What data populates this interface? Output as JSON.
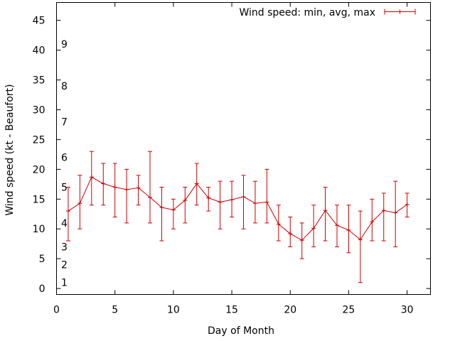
{
  "chart_data": {
    "type": "line",
    "series_name": "Wind speed: min, avg, max",
    "xlabel": "Day of Month",
    "ylabel": "Wind speed (kt - Beaufort)",
    "xlim": [
      0,
      32
    ],
    "ylim": [
      -1,
      48
    ],
    "x_ticks": [
      "0",
      "5",
      "10",
      "15",
      "20",
      "25",
      "30"
    ],
    "y_ticks": [
      "0",
      "5",
      "10",
      "15",
      "20",
      "25",
      "30",
      "35",
      "40",
      "45"
    ],
    "beaufort_labels": [
      {
        "label": "1",
        "y": 1
      },
      {
        "label": "2",
        "y": 4
      },
      {
        "label": "3",
        "y": 7
      },
      {
        "label": "4",
        "y": 11
      },
      {
        "label": "5",
        "y": 17
      },
      {
        "label": "6",
        "y": 22
      },
      {
        "label": "7",
        "y": 28
      },
      {
        "label": "8",
        "y": 34
      },
      {
        "label": "9",
        "y": 41
      }
    ],
    "color": "#cc0000",
    "points": [
      {
        "x": 1,
        "avg": 13.0,
        "min": 8,
        "max": 17
      },
      {
        "x": 2,
        "avg": 14.3,
        "min": 10,
        "max": 19
      },
      {
        "x": 3,
        "avg": 18.7,
        "min": 14,
        "max": 23
      },
      {
        "x": 4,
        "avg": 17.6,
        "min": 14,
        "max": 21
      },
      {
        "x": 5,
        "avg": 17.0,
        "min": 12,
        "max": 21
      },
      {
        "x": 6,
        "avg": 16.6,
        "min": 11,
        "max": 20
      },
      {
        "x": 7,
        "avg": 16.9,
        "min": 14,
        "max": 19
      },
      {
        "x": 8,
        "avg": 15.3,
        "min": 11,
        "max": 23
      },
      {
        "x": 9,
        "avg": 13.6,
        "min": 8,
        "max": 17
      },
      {
        "x": 10,
        "avg": 13.2,
        "min": 10,
        "max": 15
      },
      {
        "x": 11,
        "avg": 14.8,
        "min": 11,
        "max": 17
      },
      {
        "x": 12,
        "avg": 17.6,
        "min": 14,
        "max": 21
      },
      {
        "x": 13,
        "avg": 15.2,
        "min": 13,
        "max": 17
      },
      {
        "x": 14,
        "avg": 14.5,
        "min": 10,
        "max": 18
      },
      {
        "x": 15,
        "avg": 14.9,
        "min": 12,
        "max": 18
      },
      {
        "x": 16,
        "avg": 15.4,
        "min": 10,
        "max": 19
      },
      {
        "x": 17,
        "avg": 14.3,
        "min": 11,
        "max": 18
      },
      {
        "x": 18,
        "avg": 14.5,
        "min": 11,
        "max": 20
      },
      {
        "x": 19,
        "avg": 10.8,
        "min": 8,
        "max": 14
      },
      {
        "x": 20,
        "avg": 9.2,
        "min": 7,
        "max": 12
      },
      {
        "x": 21,
        "avg": 8.1,
        "min": 5,
        "max": 11
      },
      {
        "x": 22,
        "avg": 10.1,
        "min": 7,
        "max": 14
      },
      {
        "x": 23,
        "avg": 13.1,
        "min": 8,
        "max": 17
      },
      {
        "x": 24,
        "avg": 10.6,
        "min": 7,
        "max": 14
      },
      {
        "x": 25,
        "avg": 9.8,
        "min": 6,
        "max": 14
      },
      {
        "x": 26,
        "avg": 8.2,
        "min": 1,
        "max": 13
      },
      {
        "x": 27,
        "avg": 11.2,
        "min": 8,
        "max": 15
      },
      {
        "x": 28,
        "avg": 13.1,
        "min": 8,
        "max": 16
      },
      {
        "x": 29,
        "avg": 12.7,
        "min": 7,
        "max": 18
      },
      {
        "x": 30,
        "avg": 14.1,
        "min": 12,
        "max": 16
      }
    ]
  }
}
